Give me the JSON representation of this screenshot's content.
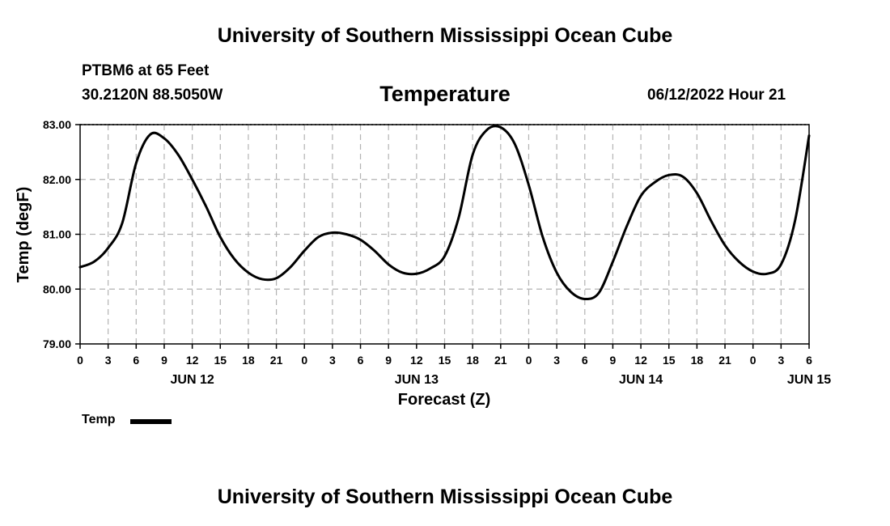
{
  "header": {
    "top_title": "University of Southern Mississippi Ocean Cube",
    "station": "PTBM6 at 65 Feet",
    "coordinates": "30.2120N  88.5050W",
    "datetime": "06/12/2022 Hour 21",
    "bottom_title": "University of Southern Mississippi Ocean Cube"
  },
  "chart_data": {
    "type": "line",
    "title": "Temperature",
    "xlabel": "Forecast (Z)",
    "ylabel": "Temp (degF)",
    "ylim": [
      79,
      83
    ],
    "xlim": [
      0,
      78
    ],
    "x_unit": "hours from JUN 12 00Z",
    "yticks": [
      "79.00",
      "80.00",
      "81.00",
      "82.00",
      "83.00"
    ],
    "xtick_labels": [
      "0",
      "3",
      "6",
      "9",
      "12",
      "15",
      "18",
      "21",
      "0",
      "3",
      "6",
      "9",
      "12",
      "15",
      "18",
      "21",
      "0",
      "3",
      "6",
      "9",
      "12",
      "15",
      "18",
      "21",
      "0",
      "3",
      "6"
    ],
    "date_labels": [
      {
        "label": "JUN 12",
        "hour": 12
      },
      {
        "label": "JUN 13",
        "hour": 36
      },
      {
        "label": "JUN 14",
        "hour": 60
      },
      {
        "label": "JUN 15",
        "hour": 78
      }
    ],
    "grid": true,
    "legend": [
      {
        "name": "Temp",
        "position": "bottom-left"
      }
    ],
    "series": [
      {
        "name": "Temp",
        "x": [
          0,
          1.5,
          3,
          4.5,
          6,
          7.5,
          9,
          10.5,
          12,
          13.5,
          15,
          16.5,
          18,
          19.5,
          21,
          22.5,
          24,
          25.5,
          27,
          28.5,
          30,
          31.5,
          33,
          34.5,
          36,
          37.5,
          39,
          40.5,
          42,
          43.5,
          45,
          46.5,
          48,
          49.5,
          51,
          52.5,
          54,
          55.5,
          57,
          58.5,
          60,
          61.5,
          63,
          64.5,
          66,
          67.5,
          69,
          70.5,
          72,
          73.5,
          75,
          76.5,
          78
        ],
        "values": [
          80.4,
          80.5,
          80.75,
          81.2,
          82.3,
          82.82,
          82.75,
          82.45,
          82.0,
          81.5,
          80.95,
          80.55,
          80.3,
          80.18,
          80.2,
          80.4,
          80.7,
          80.95,
          81.03,
          81.0,
          80.9,
          80.7,
          80.45,
          80.3,
          80.28,
          80.38,
          80.6,
          81.3,
          82.45,
          82.9,
          82.95,
          82.65,
          81.9,
          80.95,
          80.3,
          79.95,
          79.82,
          79.93,
          80.5,
          81.15,
          81.7,
          81.95,
          82.08,
          82.05,
          81.75,
          81.25,
          80.8,
          80.5,
          80.32,
          80.28,
          80.45,
          81.25,
          82.8
        ]
      }
    ]
  }
}
